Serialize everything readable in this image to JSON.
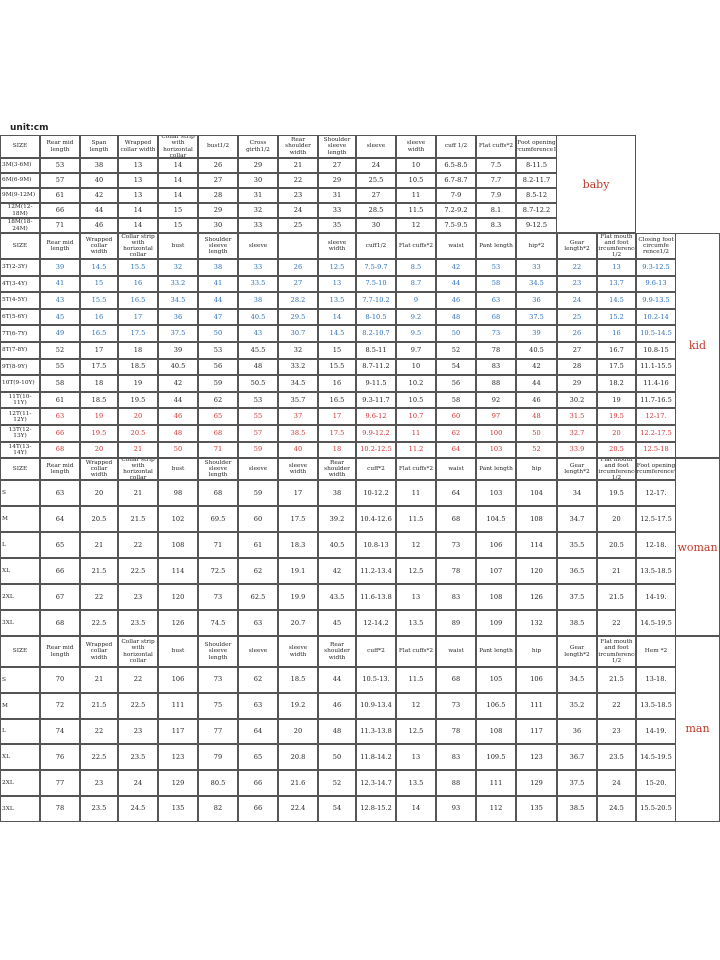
{
  "unit": "unit:cm",
  "sections": [
    {
      "label": "baby",
      "header": [
        "SIZE",
        "Rear mid length",
        "Span length",
        "Wrapped collar width",
        "Collar strip with horizontal collar",
        "bust1/2",
        "Cross girth1/2",
        "Rear shoulder width",
        "Shoulder sleeve length",
        "sleeve",
        "sleeve width",
        "cuff 1/2",
        "Flat cuffs*2",
        "Foot opening circumference1/2"
      ],
      "rows": [
        [
          "3M(3-6M)",
          "53",
          "38",
          "13",
          "14",
          "26",
          "29",
          "21",
          "27",
          "24",
          "10",
          "6.5-8.5",
          "7.5",
          "8-11.5"
        ],
        [
          "6M(6-9M)",
          "57",
          "40",
          "13",
          "14",
          "27",
          "30",
          "22",
          "29",
          "25.5",
          "10.5",
          "6.7-8.7",
          "7.7",
          "8.2-11.7"
        ],
        [
          "9M(9-12M)",
          "61",
          "42",
          "13",
          "14",
          "28",
          "31",
          "23",
          "31",
          "27",
          "11",
          "7-9",
          "7.9",
          "8.5-12"
        ],
        [
          "12M(12-18M)",
          "66",
          "44",
          "14",
          "15",
          "29",
          "32",
          "24",
          "33",
          "28.5",
          "11.5",
          "7.2-9.2",
          "8.1",
          "8.7-12.2"
        ],
        [
          "18M(18-24M)",
          "71",
          "46",
          "14",
          "15",
          "30",
          "33",
          "25",
          "35",
          "30",
          "12",
          "7.5-9.5",
          "8.3",
          "9-12.5"
        ]
      ]
    },
    {
      "label": "kid",
      "header": [
        "SIZE",
        "Rear mid length",
        "Wrapped collar width",
        "Collar strip with horizontal collar",
        "bust",
        "Shoulder sleeve length",
        "sleeve",
        null,
        "sleeve width",
        "cuff1/2",
        "Flat cuffs*2",
        "waist",
        "Pant length",
        "hip*2",
        "Gear length*2",
        "Flat mouth and foot circumference 1/2",
        "Closing foot circumfe rence1/2"
      ],
      "rows": [
        [
          "3T(2-3Y)",
          "39",
          "14.5",
          "15.5",
          "32",
          "38",
          "33",
          "26",
          "12.5",
          "7.5-9.7",
          "8.5",
          "42",
          "53",
          "33",
          "22",
          "13",
          "9.3-12.5"
        ],
        [
          "4T(3-4Y)",
          "41",
          "15",
          "16",
          "33.2",
          "41",
          "33.5",
          "27",
          "13",
          "7.5-10",
          "8.7",
          "44",
          "58",
          "34.5",
          "23",
          "13.7",
          "9.6-13"
        ],
        [
          "5T(4-5Y)",
          "43",
          "15.5",
          "16.5",
          "34.5",
          "44",
          "38",
          "28.2",
          "13.5",
          "7.7-10.2",
          "9",
          "46",
          "63",
          "36",
          "24",
          "14.5",
          "9.9-13.5"
        ],
        [
          "6T(5-6Y)",
          "45",
          "16",
          "17",
          "36",
          "47",
          "40.5",
          "29.5",
          "14",
          "8-10.5",
          "9.2",
          "48",
          "68",
          "37.5",
          "25",
          "15.2",
          "10.2-14"
        ],
        [
          "7T(6-7Y)",
          "49",
          "16.5",
          "17.5",
          "37.5",
          "50",
          "43",
          "30.7",
          "14.5",
          "8.2-10.7",
          "9.5",
          "50",
          "73",
          "39",
          "26",
          "16",
          "10.5-14.5"
        ],
        [
          "8T(7-8Y)",
          "52",
          "17",
          "18",
          "39",
          "53",
          "45.5",
          "32",
          "15",
          "8.5-11",
          "9.7",
          "52",
          "78",
          "40.5",
          "27",
          "16.7",
          "10.8-15"
        ],
        [
          "9T(8-9Y)",
          "55",
          "17.5",
          "18.5",
          "40.5",
          "56",
          "48",
          "33.2",
          "15.5",
          "8.7-11.2",
          "10",
          "54",
          "83",
          "42",
          "28",
          "17.5",
          "11.1-15.5"
        ],
        [
          "10T(9-10Y)",
          "58",
          "18",
          "19",
          "42",
          "59",
          "50.5",
          "34.5",
          "16",
          "9-11.5",
          "10.2",
          "56",
          "88",
          "44",
          "29",
          "18.2",
          "11.4-16"
        ],
        [
          "11T(10-11Y)",
          "61",
          "18.5",
          "19.5",
          "44",
          "62",
          "53",
          "35.7",
          "16.5",
          "9.3-11.7",
          "10.5",
          "58",
          "92",
          "46",
          "30.2",
          "19",
          "11.7-16.5"
        ],
        [
          "12T(11-12Y)",
          "63",
          "19",
          "20",
          "46",
          "65",
          "55",
          "37",
          "17",
          "9.6-12",
          "10.7",
          "60",
          "97",
          "48",
          "31.5",
          "19.5",
          "12-17."
        ],
        [
          "13T(12-13Y)",
          "66",
          "19.5",
          "20.5",
          "48",
          "68",
          "57",
          "38.5",
          "17.5",
          "9.9-12.2",
          "11",
          "62",
          "100",
          "50",
          "32.7",
          "20",
          "12.2-17.5"
        ],
        [
          "14T(13-14Y)",
          "68",
          "20",
          "21",
          "50",
          "71",
          "59",
          "40",
          "18",
          "10.2-12.5",
          "11.2",
          "64",
          "103",
          "52",
          "33.9",
          "20.5",
          "12.5-18"
        ]
      ]
    },
    {
      "label": "woman",
      "header": [
        "SIZE",
        "Rear mid length",
        "Wrapped collar width",
        "Collar strip with horizontal collar",
        "bust",
        "Shoulder sleeve length",
        "sleeve",
        "sleeve width",
        "Rear shoulder width",
        "cuff*2",
        "Flat cuffs*2",
        "waist",
        "Pant length",
        "hip",
        "Gear length*2",
        "Flat mouth and foot circumference 1/2",
        "Foot opening circumference*2"
      ],
      "rows": [
        [
          "S",
          "63",
          "20",
          "21",
          "98",
          "68",
          "59",
          "17",
          "38",
          "10-12.2",
          "11",
          "64",
          "103",
          "104",
          "34",
          "19.5",
          "12-17."
        ],
        [
          "M",
          "64",
          "20.5",
          "21.5",
          "102",
          "69.5",
          "60",
          "17.5",
          "39.2",
          "10.4-12.6",
          "11.5",
          "68",
          "104.5",
          "108",
          "34.7",
          "20",
          "12.5-17.5"
        ],
        [
          "L",
          "65",
          "21",
          "22",
          "108",
          "71",
          "61",
          "18.3",
          "40.5",
          "10.8-13",
          "12",
          "73",
          "106",
          "114",
          "35.5",
          "20.5",
          "12-18."
        ],
        [
          "XL",
          "66",
          "21.5",
          "22.5",
          "114",
          "72.5",
          "62",
          "19.1",
          "42",
          "11.2-13.4",
          "12.5",
          "78",
          "107",
          "120",
          "36.5",
          "21",
          "13.5-18.5"
        ],
        [
          "2XL",
          "67",
          "22",
          "23",
          "120",
          "73",
          "62.5",
          "19.9",
          "43.5",
          "11.6-13.8",
          "13",
          "83",
          "108",
          "126",
          "37.5",
          "21.5",
          "14-19."
        ],
        [
          "3XL",
          "68",
          "22.5",
          "23.5",
          "126",
          "74.5",
          "63",
          "20.7",
          "45",
          "12-14.2",
          "13.5",
          "89",
          "109",
          "132",
          "38.5",
          "22",
          "14.5-19.5"
        ]
      ]
    },
    {
      "label": "man",
      "header": [
        "SIZE",
        "Rear mid length",
        "Wrapped collar width",
        "Collar strip with horizontal collar",
        "bust",
        "Shoulder sleeve length",
        "sleeve",
        "sleeve width",
        "Rear shoulder width",
        "cuff*2",
        "Flat cuffs*2",
        "waist",
        "Pant length",
        "hip",
        "Gear length*2",
        "Flat mouth and foot circumference 1/2",
        "Hem *2"
      ],
      "rows": [
        [
          "S",
          "70",
          "21",
          "22",
          "106",
          "73",
          "62",
          "18.5",
          "44",
          "10.5-13.",
          "11.5",
          "68",
          "105",
          "106",
          "34.5",
          "21.5",
          "13-18."
        ],
        [
          "M",
          "72",
          "21.5",
          "22.5",
          "111",
          "75",
          "63",
          "19.2",
          "46",
          "10.9-13.4",
          "12",
          "73",
          "106.5",
          "111",
          "35.2",
          "22",
          "13.5-18.5"
        ],
        [
          "L",
          "74",
          "22",
          "23",
          "117",
          "77",
          "64",
          "20",
          "48",
          "11.3-13.8",
          "12.5",
          "78",
          "108",
          "117",
          "36",
          "23",
          "14-19."
        ],
        [
          "XL",
          "76",
          "22.5",
          "23.5",
          "123",
          "79",
          "65",
          "20.8",
          "50",
          "11.8-14.2",
          "13",
          "83",
          "109.5",
          "123",
          "36.7",
          "23.5",
          "14.5-19.5"
        ],
        [
          "2XL",
          "77",
          "23",
          "24",
          "129",
          "80.5",
          "66",
          "21.6",
          "52",
          "12.3-14.7",
          "13.5",
          "88",
          "111",
          "129",
          "37.5",
          "24",
          "15-20."
        ],
        [
          "3XL",
          "78",
          "23.5",
          "24.5",
          "135",
          "82",
          "66",
          "22.4",
          "54",
          "12.8-15.2",
          "14",
          "93",
          "112",
          "135",
          "38.5",
          "24.5",
          "15.5-20.5"
        ]
      ]
    }
  ]
}
